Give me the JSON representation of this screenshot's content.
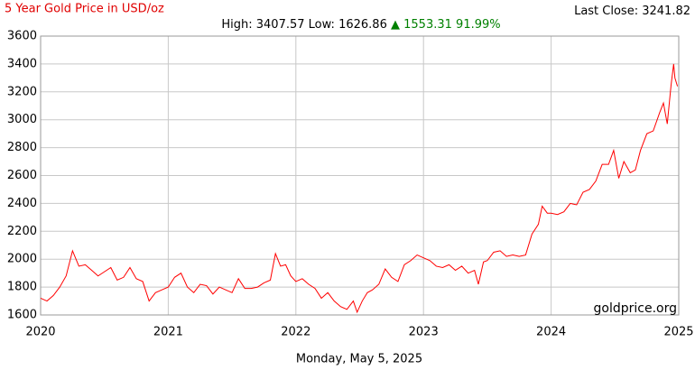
{
  "chart_data": {
    "type": "line",
    "title": "5 Year Gold Price in USD/oz",
    "stats": {
      "high_label": "High:",
      "high": 3407.57,
      "low_label": "Low:",
      "low": 1626.86,
      "change_arrow": "▲",
      "change": 1553.31,
      "change_percent": "91.99%",
      "change_color": "#008000"
    },
    "last_close_label": "Last Close:",
    "last_close": 3241.82,
    "watermark": "goldprice.org",
    "date": "Monday, May 5, 2025",
    "color": "#ff0000",
    "grid": true,
    "xlim": [
      2020,
      2025
    ],
    "xticks": [
      2020,
      2021,
      2022,
      2023,
      2024,
      2025
    ],
    "ylim": [
      1600,
      3600
    ],
    "yticks": [
      1600,
      1800,
      2000,
      2200,
      2400,
      2600,
      2800,
      3000,
      3200,
      3400,
      3600
    ],
    "x": [
      2020.0,
      2020.05,
      2020.1,
      2020.15,
      2020.2,
      2020.25,
      2020.3,
      2020.35,
      2020.4,
      2020.45,
      2020.5,
      2020.55,
      2020.6,
      2020.65,
      2020.7,
      2020.75,
      2020.8,
      2020.85,
      2020.9,
      2020.95,
      2021.0,
      2021.05,
      2021.1,
      2021.15,
      2021.2,
      2021.25,
      2021.3,
      2021.35,
      2021.4,
      2021.45,
      2021.5,
      2021.55,
      2021.6,
      2021.65,
      2021.7,
      2021.75,
      2021.8,
      2021.84,
      2021.88,
      2021.92,
      2021.96,
      2022.0,
      2022.05,
      2022.1,
      2022.15,
      2022.2,
      2022.25,
      2022.3,
      2022.35,
      2022.4,
      2022.45,
      2022.48,
      2022.52,
      2022.56,
      2022.6,
      2022.65,
      2022.7,
      2022.75,
      2022.8,
      2022.85,
      2022.9,
      2022.95,
      2023.0,
      2023.05,
      2023.1,
      2023.15,
      2023.2,
      2023.25,
      2023.3,
      2023.35,
      2023.4,
      2023.43,
      2023.47,
      2023.5,
      2023.55,
      2023.6,
      2023.65,
      2023.7,
      2023.75,
      2023.8,
      2023.85,
      2023.9,
      2023.93,
      2023.97,
      2024.0,
      2024.05,
      2024.1,
      2024.15,
      2024.2,
      2024.25,
      2024.3,
      2024.35,
      2024.4,
      2024.45,
      2024.49,
      2024.53,
      2024.57,
      2024.62,
      2024.66,
      2024.7,
      2024.75,
      2024.8,
      2024.85,
      2024.88,
      2024.91,
      2024.94,
      2024.96,
      2024.97,
      2024.99
    ],
    "values": [
      1720,
      1700,
      1740,
      1800,
      1880,
      2060,
      1950,
      1960,
      1920,
      1880,
      1910,
      1940,
      1850,
      1870,
      1940,
      1860,
      1840,
      1700,
      1760,
      1780,
      1800,
      1870,
      1900,
      1800,
      1760,
      1820,
      1810,
      1750,
      1800,
      1780,
      1760,
      1860,
      1790,
      1790,
      1800,
      1830,
      1850,
      2040,
      1950,
      1960,
      1880,
      1840,
      1860,
      1820,
      1790,
      1720,
      1760,
      1700,
      1660,
      1640,
      1700,
      1620,
      1700,
      1760,
      1780,
      1820,
      1930,
      1870,
      1840,
      1960,
      1990,
      2030,
      2010,
      1990,
      1950,
      1940,
      1960,
      1920,
      1950,
      1900,
      1920,
      1820,
      1980,
      1990,
      2050,
      2060,
      2020,
      2030,
      2020,
      2030,
      2180,
      2250,
      2380,
      2330,
      2330,
      2320,
      2340,
      2400,
      2390,
      2480,
      2500,
      2560,
      2680,
      2680,
      2780,
      2580,
      2700,
      2620,
      2640,
      2780,
      2900,
      2920,
      3050,
      3120,
      2970,
      3250,
      3400,
      3300,
      3240
    ]
  }
}
